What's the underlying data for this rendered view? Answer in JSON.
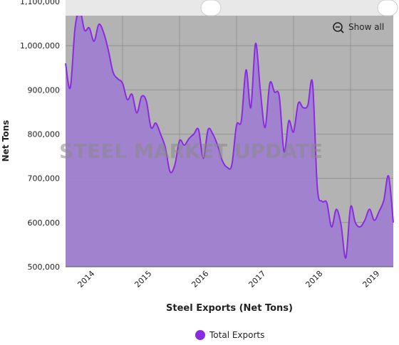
{
  "chart_data": {
    "type": "area",
    "x_title": "Steel Exports (Net Tons)",
    "y_title": "Net Tons",
    "watermark": "STEEL MARKET UPDATE",
    "reset_button": "Show all",
    "categories": [
      null,
      null,
      null,
      null,
      null,
      "2014",
      null,
      null,
      null,
      null,
      null,
      null,
      null,
      null,
      null,
      null,
      null,
      "2015",
      null,
      null,
      null,
      null,
      null,
      null,
      null,
      null,
      null,
      null,
      null,
      "2016",
      null,
      null,
      null,
      null,
      null,
      null,
      null,
      null,
      null,
      null,
      null,
      "2017",
      null,
      null,
      null,
      null,
      null,
      null,
      null,
      null,
      null,
      null,
      null,
      "2018",
      null,
      null,
      null,
      null,
      null,
      null,
      null,
      null,
      null,
      null,
      null,
      "2019",
      null,
      null,
      null,
      null
    ],
    "series": [
      {
        "name": "Total Exports",
        "color": "#8a2be2",
        "fill": "#a07fd0",
        "values": [
          960000,
          905000,
          1040000,
          1080000,
          1035000,
          1040000,
          1010000,
          1048000,
          1030000,
          990000,
          940000,
          925000,
          915000,
          878000,
          890000,
          848000,
          885000,
          875000,
          815000,
          825000,
          800000,
          770000,
          715000,
          730000,
          785000,
          775000,
          790000,
          800000,
          810000,
          745000,
          810000,
          800000,
          775000,
          740000,
          725000,
          730000,
          820000,
          830000,
          945000,
          860000,
          1005000,
          900000,
          815000,
          915000,
          895000,
          885000,
          760000,
          830000,
          805000,
          870000,
          860000,
          865000,
          915000,
          680000,
          648000,
          645000,
          590000,
          630000,
          595000,
          520000,
          635000,
          600000,
          590000,
          605000,
          630000,
          605000,
          625000,
          650000,
          705000,
          600000
        ]
      }
    ],
    "ylim": [
      500000,
      1100000
    ],
    "yticks": [
      {
        "value": 500000,
        "label": "500,000"
      },
      {
        "value": 600000,
        "label": "600,000"
      },
      {
        "value": 700000,
        "label": "700,000"
      },
      {
        "value": 800000,
        "label": "800,000"
      },
      {
        "value": 900000,
        "label": "900,000"
      },
      {
        "value": 1000000,
        "label": "1,000,000"
      },
      {
        "value": 1100000,
        "label": "1,100,000"
      }
    ],
    "grid": true,
    "plot_background": "#b3b3b3",
    "legend": "bottom"
  }
}
